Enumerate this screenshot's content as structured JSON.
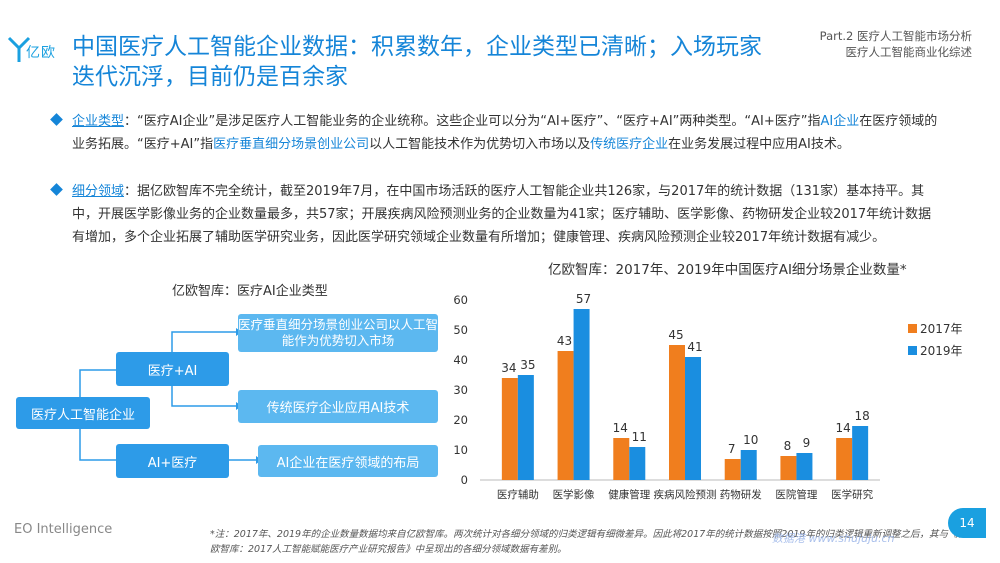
{
  "header": {
    "logo_text": "亿欧",
    "title": "中国医疗人工智能企业数据：积累数年，企业类型已清晰；入场玩家迭代沉浮，目前仍是百余家",
    "part_line1": "Part.2  医疗人工智能市场分析",
    "part_line2": "医疗人工智能商业化综述"
  },
  "bullets": {
    "b1": {
      "label": "企业类型",
      "t1": "：“医疗AI企业”是涉足医疗人工智能业务的企业统称。这些企业可以分为“AI+医疗”、“医疗+AI”两种类型。“AI+医疗”指",
      "h1": "AI企业",
      "t2": "在医疗领域的业务拓展。“医疗+AI”指",
      "h2": "医疗垂直细分场景创业公司",
      "t3": "以人工智能技术作为优势切入市场以及",
      "h3": "传统医疗企业",
      "t4": "在业务发展过程中应用AI技术。"
    },
    "b2": {
      "label": "细分领域",
      "text": "：据亿欧智库不完全统计，截至2019年7月，在中国市场活跃的医疗人工智能企业共126家，与2017年的统计数据（131家）基本持平。其中，开展医学影像业务的企业数量最多，共57家；开展疾病风险预测业务的企业数量为41家；医疗辅助、医学影像、药物研发企业较2017年统计数据有增加，多个企业拓展了辅助医学研究业务，因此医学研究领域企业数量有所增加；健康管理、疾病风险预测企业较2017年统计数据有减少。"
    }
  },
  "diagram": {
    "title": "亿欧智库：医疗AI企业类型",
    "root": "医疗人工智能企业",
    "branch1": "医疗+AI",
    "branch2": "AI+医疗",
    "leaf1": "医疗垂直细分场景创业公司以人工智能作为优势切入市场",
    "leaf2": "传统医疗企业应用AI技术",
    "leaf3": "AI企业在医疗领域的布局"
  },
  "chart_data": {
    "type": "bar",
    "title": "亿欧智库：2017年、2019年中国医疗AI细分场景企业数量*",
    "categories": [
      "医疗辅助",
      "医学影像",
      "健康管理",
      "疾病风险预测",
      "药物研发",
      "医院管理",
      "医学研究"
    ],
    "series": [
      {
        "name": "2017年",
        "values": [
          34,
          43,
          14,
          45,
          7,
          8,
          14
        ],
        "color": "#f07e1e"
      },
      {
        "name": "2019年",
        "values": [
          35,
          57,
          11,
          41,
          10,
          9,
          18
        ],
        "color": "#1a8ee0"
      }
    ],
    "ylim": [
      0,
      60
    ],
    "yticks": [
      0,
      10,
      20,
      30,
      40,
      50,
      60
    ],
    "legend": "right"
  },
  "footer": {
    "brand": "EO Intelligence",
    "note": "*注：2017年、2019年的企业数量数据均来自亿欧智库。两次统计对各细分领域的归类逻辑有细微差异。因此将2017年的统计数据按照2019年的归类逻辑重新调整之后，其与《亿欧智库：2017人工智能赋能医疗产业研究报告》中呈现出的各细分领域数据有差别。",
    "watermark": "数据港  www.shujuju.cn",
    "page": "14"
  }
}
